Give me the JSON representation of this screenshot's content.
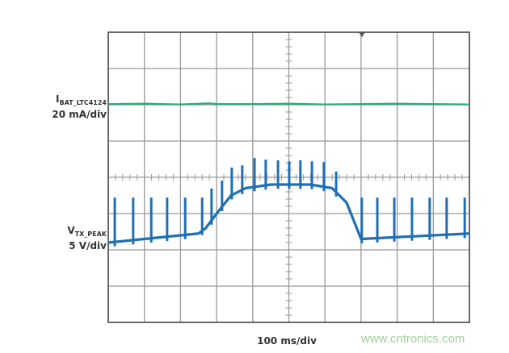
{
  "chart_data": {
    "type": "line",
    "xlabel": "100 ms/div",
    "x_unit": "ms",
    "xlim": [
      0,
      1000
    ],
    "y_unit": "div",
    "ylim": [
      0,
      8
    ],
    "grid": true,
    "grid_divisions": {
      "x": 10,
      "y": 8
    },
    "series": [
      {
        "name_main": "I",
        "name_sub": "BAT_LTC4124",
        "scale": "20 mA/div",
        "color": "#2bab6e",
        "x": [
          0,
          100,
          200,
          280,
          300,
          400,
          500,
          600,
          700,
          800,
          900,
          1000
        ],
        "y": [
          6.02,
          6.03,
          6.01,
          6.04,
          6.02,
          6.02,
          6.03,
          6.01,
          6.02,
          6.03,
          6.02,
          6.01
        ]
      },
      {
        "name_main": "V",
        "name_sub": "TX_PEAK",
        "scale": "5 V/div",
        "color": "#1f6fb5",
        "x": [
          0,
          250,
          270,
          300,
          340,
          380,
          450,
          560,
          620,
          660,
          700,
          1000
        ],
        "y": [
          2.2,
          2.45,
          2.6,
          3.0,
          3.5,
          3.7,
          3.8,
          3.8,
          3.7,
          3.3,
          2.3,
          2.45
        ],
        "spikes": {
          "x": [
            18,
            69,
            119,
            163,
            213,
            260,
            286,
            315,
            342,
            371,
            405,
            436,
            470,
            501,
            532,
            564,
            597,
            631,
            702,
            745,
            792,
            841,
            890,
            937,
            987
          ],
          "peak": [
            3.44,
            3.44,
            3.44,
            3.44,
            3.44,
            3.44,
            3.69,
            3.91,
            4.27,
            4.33,
            4.53,
            4.49,
            4.47,
            4.44,
            4.47,
            4.44,
            4.42,
            4.16,
            3.44,
            3.44,
            3.44,
            3.44,
            3.44,
            3.44,
            3.44
          ]
        }
      }
    ]
  },
  "watermark": "www.cntronics.com"
}
